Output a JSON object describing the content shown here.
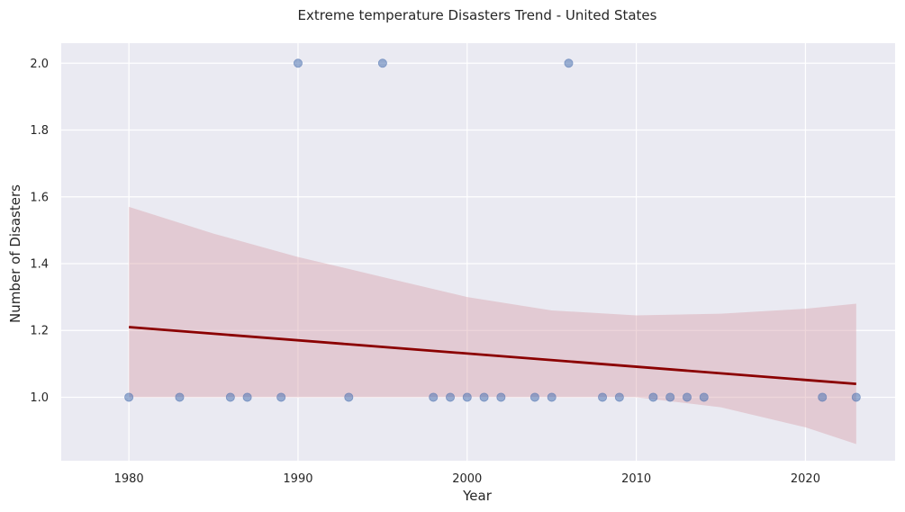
{
  "chart_data": {
    "type": "scatter",
    "title": "Extreme temperature Disasters Trend - United States",
    "xlabel": "Year",
    "ylabel": "Number of Disasters",
    "xlim": [
      1976,
      2025.3
    ],
    "ylim": [
      0.81,
      2.06
    ],
    "xticks": [
      1980,
      1990,
      2000,
      2010,
      2020
    ],
    "xtick_labels": [
      "1980",
      "1990",
      "2000",
      "2010",
      "2020"
    ],
    "yticks": [
      1.0,
      1.2,
      1.4,
      1.6,
      1.8,
      2.0
    ],
    "ytick_labels": [
      "1.0",
      "1.2",
      "1.4",
      "1.6",
      "1.8",
      "2.0"
    ],
    "grid": true,
    "colors": {
      "background": "#eaeaf2",
      "grid": "#ffffff",
      "points": "#4c72b0",
      "trend": "#8b0000",
      "band": "#d9a3ae"
    },
    "points": [
      {
        "x": 1980,
        "y": 1
      },
      {
        "x": 1983,
        "y": 1
      },
      {
        "x": 1986,
        "y": 1
      },
      {
        "x": 1987,
        "y": 1
      },
      {
        "x": 1989,
        "y": 1
      },
      {
        "x": 1990,
        "y": 2
      },
      {
        "x": 1993,
        "y": 1
      },
      {
        "x": 1995,
        "y": 2
      },
      {
        "x": 1998,
        "y": 1
      },
      {
        "x": 1999,
        "y": 1
      },
      {
        "x": 2000,
        "y": 1
      },
      {
        "x": 2001,
        "y": 1
      },
      {
        "x": 2002,
        "y": 1
      },
      {
        "x": 2004,
        "y": 1
      },
      {
        "x": 2005,
        "y": 1
      },
      {
        "x": 2006,
        "y": 2
      },
      {
        "x": 2008,
        "y": 1
      },
      {
        "x": 2009,
        "y": 1
      },
      {
        "x": 2011,
        "y": 1
      },
      {
        "x": 2012,
        "y": 1
      },
      {
        "x": 2013,
        "y": 1
      },
      {
        "x": 2014,
        "y": 1
      },
      {
        "x": 2021,
        "y": 1
      },
      {
        "x": 2023,
        "y": 1
      }
    ],
    "trend_line": {
      "x": [
        1980,
        2023
      ],
      "y": [
        1.21,
        1.04
      ]
    },
    "confidence_band": {
      "x": [
        1980,
        1985,
        1990,
        1995,
        2000,
        2005,
        2010,
        2015,
        2020,
        2023
      ],
      "upper": [
        1.57,
        1.49,
        1.42,
        1.36,
        1.3,
        1.26,
        1.245,
        1.25,
        1.265,
        1.28
      ],
      "lower": [
        1.0,
        1.0,
        1.0,
        1.0,
        1.0,
        1.0,
        1.0,
        0.97,
        0.91,
        0.86
      ]
    }
  }
}
